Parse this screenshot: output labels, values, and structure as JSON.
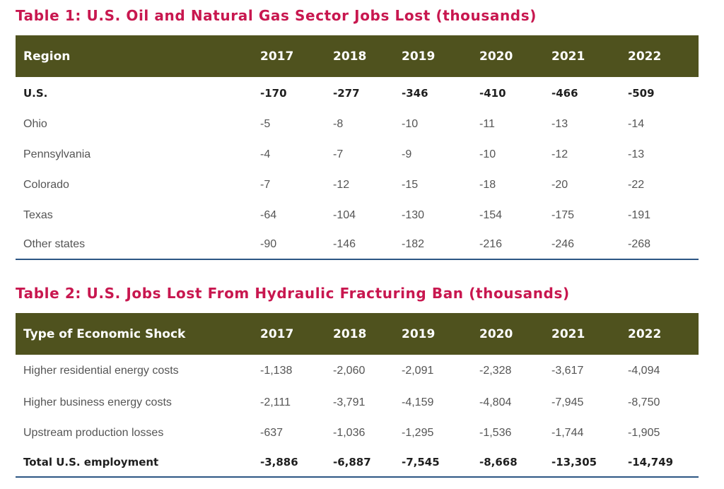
{
  "table1": {
    "title": "Table 1: U.S. Oil and Natural Gas Sector Jobs Lost (thousands)",
    "headers": [
      "Region",
      "2017",
      "2018",
      "2019",
      "2020",
      "2021",
      "2022"
    ],
    "rows": [
      {
        "label": "U.S.",
        "values": [
          "-170",
          "-277",
          "-346",
          "-410",
          "-466",
          "-509"
        ],
        "bold": true
      },
      {
        "label": "Ohio",
        "values": [
          "-5",
          "-8",
          "-10",
          "-11",
          "-13",
          "-14"
        ],
        "bold": false
      },
      {
        "label": "Pennsylvania",
        "values": [
          "-4",
          "-7",
          "-9",
          "-10",
          "-12",
          "-13"
        ],
        "bold": false
      },
      {
        "label": "Colorado",
        "values": [
          "-7",
          "-12",
          "-15",
          "-18",
          "-20",
          "-22"
        ],
        "bold": false
      },
      {
        "label": "Texas",
        "values": [
          "-64",
          "-104",
          "-130",
          "-154",
          "-175",
          "-191"
        ],
        "bold": false
      },
      {
        "label": "Other states",
        "values": [
          "-90",
          "-146",
          "-182",
          "-216",
          "-246",
          "-268"
        ],
        "bold": false
      }
    ]
  },
  "table2": {
    "title": "Table 2: U.S. Jobs Lost From Hydraulic Fracturing Ban (thousands)",
    "headers": [
      "Type of Economic Shock",
      "2017",
      "2018",
      "2019",
      "2020",
      "2021",
      "2022"
    ],
    "rows": [
      {
        "label": "Higher residential energy costs",
        "values": [
          "-1,138",
          "-2,060",
          "-2,091",
          "-2,328",
          "-3,617",
          "-4,094"
        ],
        "bold": false
      },
      {
        "label": "Higher business energy costs",
        "values": [
          "-2,111",
          "-3,791",
          "-4,159",
          "-4,804",
          "-7,945",
          "-8,750"
        ],
        "bold": false
      },
      {
        "label": "Upstream production losses",
        "values": [
          "-637",
          "-1,036",
          "-1,295",
          "-1,536",
          "-1,744",
          "-1,905"
        ],
        "bold": false
      },
      {
        "label": "Total U.S. employment",
        "values": [
          "-3,886",
          "-6,887",
          "-7,545",
          "-8,668",
          "-13,305",
          "-14,749"
        ],
        "bold": true
      }
    ]
  },
  "colors": {
    "title": "#c8174f",
    "header_bg": "#4f521e",
    "rule": "#2c5684"
  }
}
